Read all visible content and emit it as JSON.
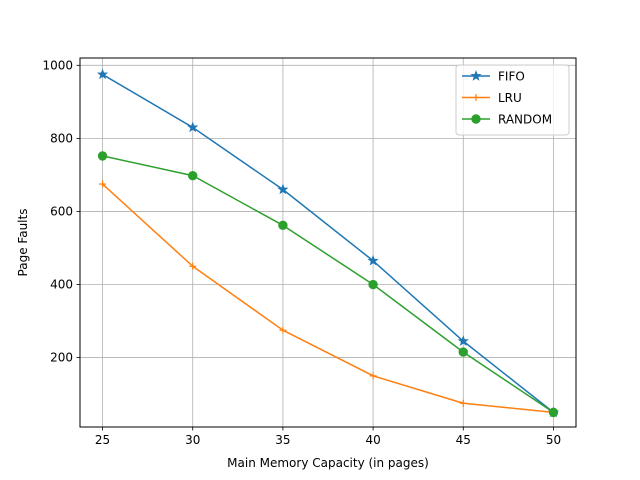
{
  "chart_data": {
    "type": "line",
    "title": "",
    "xlabel": "Main Memory Capacity (in pages)",
    "ylabel": "Page Faults",
    "x": [
      25,
      30,
      35,
      40,
      45,
      50
    ],
    "xlim": [
      23.75,
      51.25
    ],
    "ylim": [
      10,
      1020
    ],
    "xticks": [
      25,
      30,
      35,
      40,
      45,
      50
    ],
    "yticks": [
      200,
      400,
      600,
      800,
      1000
    ],
    "grid": true,
    "legend_position": "upper right",
    "series": [
      {
        "name": "FIFO",
        "values": [
          975,
          830,
          660,
          465,
          245,
          50
        ],
        "color": "#1f77b4",
        "marker": "star"
      },
      {
        "name": "LRU",
        "values": [
          675,
          450,
          275,
          150,
          75,
          50
        ],
        "color": "#ff7f0e",
        "marker": "plus"
      },
      {
        "name": "RANDOM",
        "values": [
          752,
          698,
          562,
          400,
          215,
          50
        ],
        "color": "#2ca02c",
        "marker": "circle"
      }
    ]
  }
}
